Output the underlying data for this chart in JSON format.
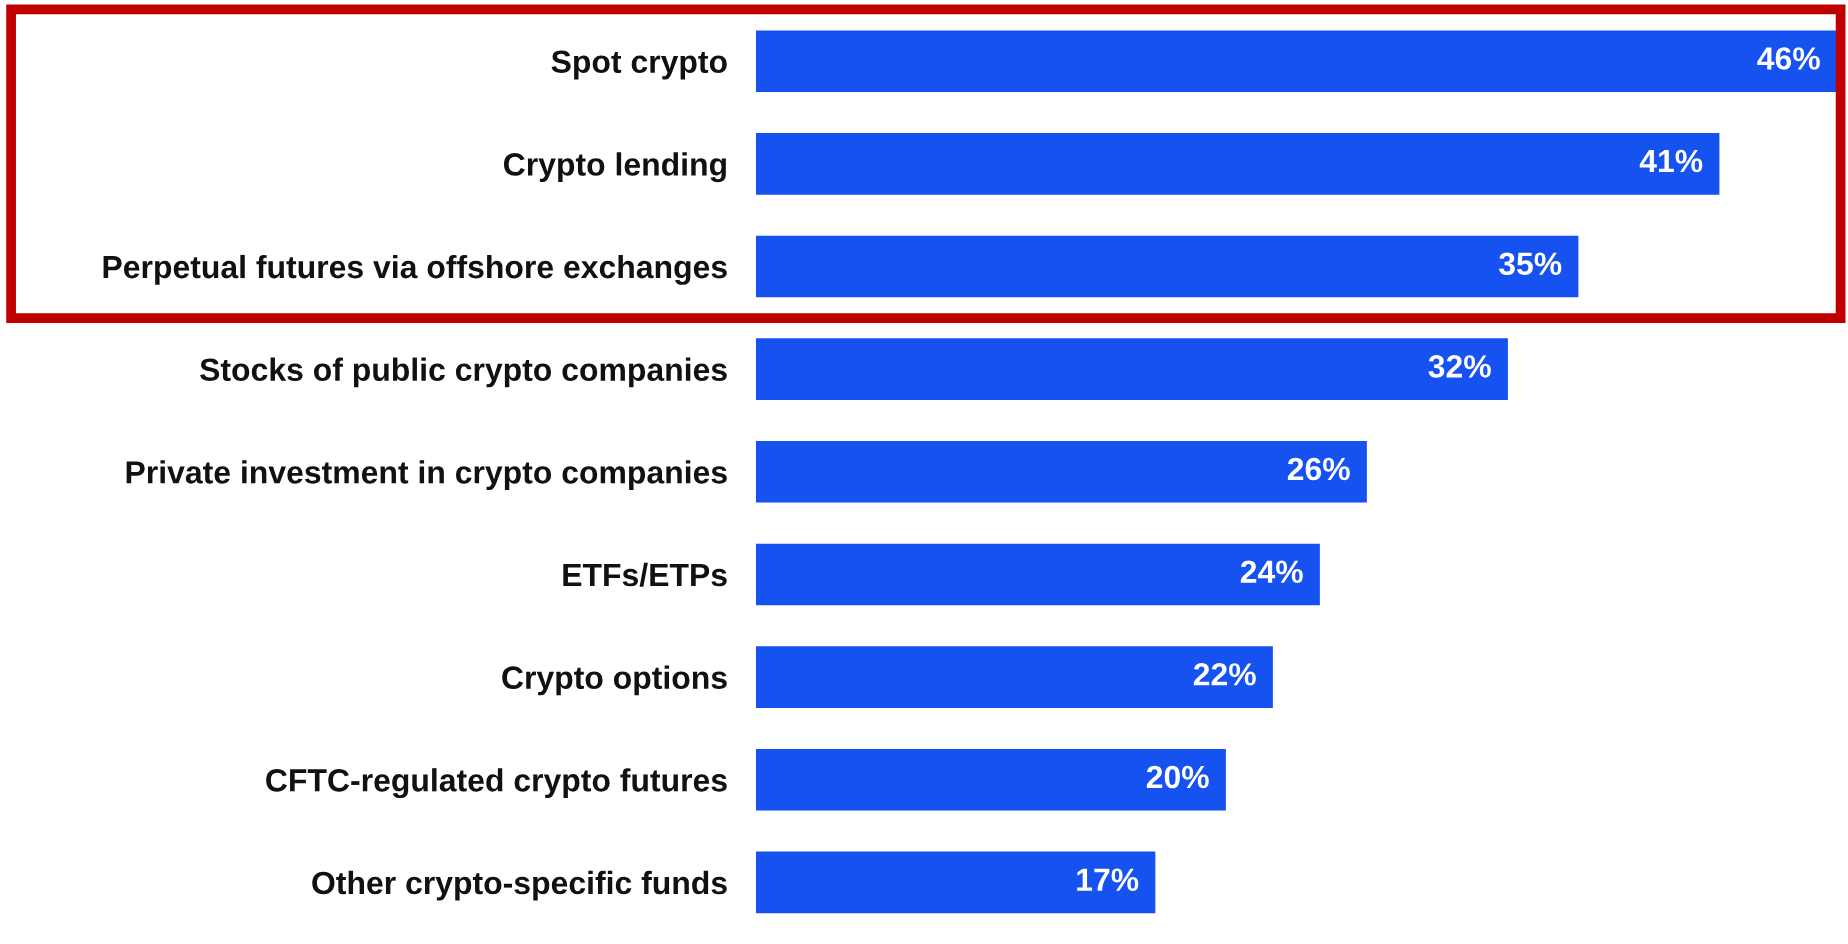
{
  "chart_data": {
    "type": "bar",
    "orientation": "horizontal",
    "categories": [
      "Spot crypto",
      "Crypto lending",
      "Perpetual futures via offshore exchanges",
      "Stocks of public crypto companies",
      "Private investment in crypto companies",
      "ETFs/ETPs",
      "Crypto options",
      "CFTC-regulated crypto futures",
      "Other crypto-specific funds"
    ],
    "values": [
      46,
      41,
      35,
      32,
      26,
      24,
      22,
      20,
      17
    ],
    "value_labels": [
      "46%",
      "41%",
      "35%",
      "32%",
      "26%",
      "24%",
      "22%",
      "20%",
      "17%"
    ],
    "color": "#1652f0",
    "grid": false,
    "legend": false,
    "tick_labels": "y"
  }
}
